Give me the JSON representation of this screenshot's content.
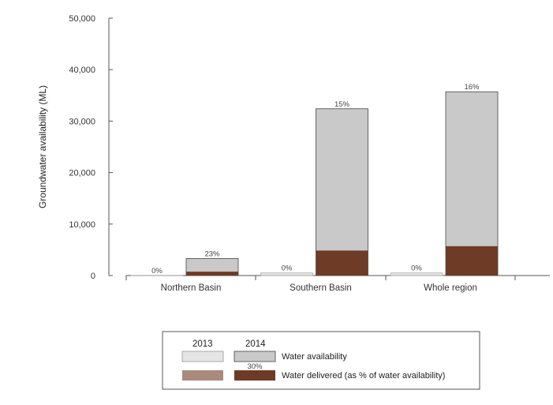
{
  "chart_data": {
    "type": "bar",
    "title": "",
    "xlabel": "",
    "ylabel": "Groundwater availability (ML)",
    "ylim": [
      0,
      50000
    ],
    "yticks": [
      0,
      10000,
      20000,
      30000,
      40000,
      50000
    ],
    "ytick_labels": [
      "0",
      "10,000",
      "20,000",
      "30,000",
      "40,000",
      "50,000"
    ],
    "categories": [
      "Northern Basin",
      "Southern Basin",
      "Whole region"
    ],
    "years": [
      "2013",
      "2014"
    ],
    "series": [
      {
        "name": "Water availability",
        "year": "2013",
        "values": [
          0,
          500,
          500
        ]
      },
      {
        "name": "Water availability",
        "year": "2014",
        "values": [
          3300,
          32400,
          35700
        ]
      },
      {
        "name": "Water delivered (as % of water availability)",
        "year": "2013",
        "values": [
          0,
          0,
          0
        ]
      },
      {
        "name": "Water delivered (as % of water availability)",
        "year": "2014",
        "values": [
          750,
          4850,
          5700
        ]
      }
    ],
    "data_labels": {
      "2013": [
        "0%",
        "0%",
        "0%"
      ],
      "2014": [
        "23%",
        "15%",
        "16%"
      ]
    },
    "grid": false,
    "legend": {
      "placement": "bottom",
      "headers": [
        "2013",
        "2014"
      ],
      "rows": [
        {
          "label": "Water availability",
          "colors": [
            "#e5e5e5",
            "#c9c9c9"
          ]
        },
        {
          "label": "Water delivered (as % of water availability)",
          "colors": [
            "#a98a7c",
            "#6e3b26"
          ],
          "note": "30%"
        }
      ]
    },
    "colors": {
      "availability_2013": "#e5e5e5",
      "availability_2014": "#c9c9c9",
      "delivered_2013": "#a98a7c",
      "delivered_2014": "#6e3b26",
      "axis": "#555555"
    }
  }
}
